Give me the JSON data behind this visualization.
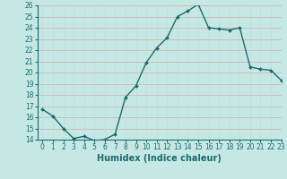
{
  "xlabel": "Humidex (Indice chaleur)",
  "x": [
    0,
    1,
    2,
    3,
    4,
    5,
    6,
    7,
    8,
    9,
    10,
    11,
    12,
    13,
    14,
    15,
    16,
    17,
    18,
    19,
    20,
    21,
    22,
    23
  ],
  "y": [
    16.7,
    16.1,
    15.0,
    14.1,
    14.3,
    13.9,
    14.0,
    14.5,
    17.8,
    18.8,
    20.9,
    22.2,
    23.1,
    25.0,
    25.5,
    26.1,
    24.0,
    23.9,
    23.8,
    24.0,
    20.5,
    20.3,
    20.2,
    19.3
  ],
  "line_color": "#1a6b6b",
  "marker": "D",
  "marker_size": 2.0,
  "background_color": "#c5e8e5",
  "grid_color_h": "#d4a8a8",
  "grid_color_v": "#c0dada",
  "ylim": [
    14,
    26
  ],
  "xlim": [
    -0.5,
    23
  ],
  "yticks": [
    14,
    15,
    16,
    17,
    18,
    19,
    20,
    21,
    22,
    23,
    24,
    25,
    26
  ],
  "xticks": [
    0,
    1,
    2,
    3,
    4,
    5,
    6,
    7,
    8,
    9,
    10,
    11,
    12,
    13,
    14,
    15,
    16,
    17,
    18,
    19,
    20,
    21,
    22,
    23
  ],
  "tick_fontsize": 5.5,
  "xlabel_fontsize": 7.0,
  "line_width": 1.0
}
